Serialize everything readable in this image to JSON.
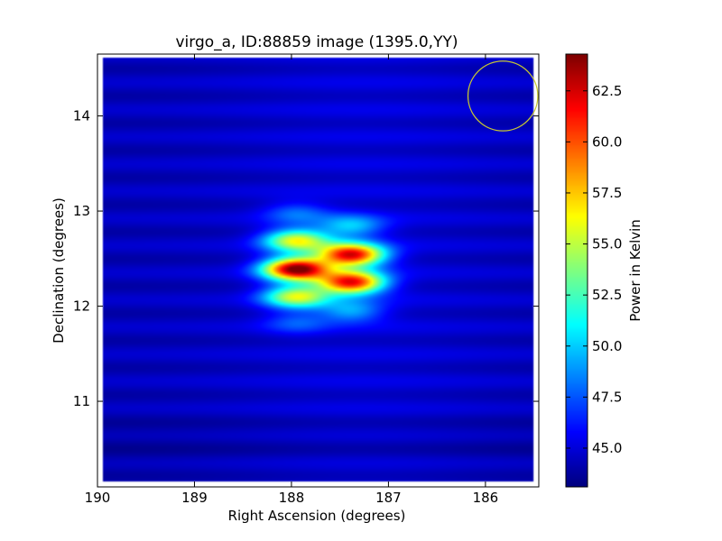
{
  "chart_data": {
    "type": "heatmap",
    "title": "virgo_a, ID:88859 image (1395.0,YY)",
    "xlabel": "Right Ascension (degrees)",
    "ylabel": "Declination (degrees)",
    "xlim": [
      190.0,
      185.45
    ],
    "ylim": [
      10.1,
      14.65
    ],
    "x_ticks": [
      190,
      189,
      188,
      187,
      186
    ],
    "x_tick_labels": [
      "190",
      "189",
      "188",
      "187",
      "186"
    ],
    "y_ticks": [
      11,
      12,
      13,
      14
    ],
    "y_tick_labels": [
      "11",
      "12",
      "13",
      "14"
    ],
    "colorbar": {
      "label": "Power in Kelvin",
      "range": [
        43.1,
        64.3
      ],
      "ticks": [
        45.0,
        47.5,
        50.0,
        52.5,
        55.0,
        57.5,
        60.0,
        62.5
      ],
      "tick_labels": [
        "45.0",
        "47.5",
        "50.0",
        "52.5",
        "55.0",
        "57.5",
        "60.0",
        "62.5"
      ],
      "colormap": "jet"
    },
    "background_level": 44.3,
    "data_extent": {
      "ra": [
        189.95,
        185.5
      ],
      "dec": [
        10.15,
        14.62
      ]
    },
    "sources": [
      {
        "ra": 187.95,
        "dec": 12.39,
        "peak": 64.0
      },
      {
        "ra": 187.95,
        "dec": 12.69,
        "peak": 55.5
      },
      {
        "ra": 187.95,
        "dec": 12.1,
        "peak": 55.0
      },
      {
        "ra": 187.95,
        "dec": 12.98,
        "peak": 47.5
      },
      {
        "ra": 187.95,
        "dec": 11.83,
        "peak": 47.0
      },
      {
        "ra": 187.38,
        "dec": 12.54,
        "peak": 62.0
      },
      {
        "ra": 187.38,
        "dec": 12.25,
        "peak": 61.5
      },
      {
        "ra": 187.38,
        "dec": 12.84,
        "peak": 49.5
      },
      {
        "ra": 187.38,
        "dec": 11.95,
        "peak": 49.0
      }
    ],
    "beam_circle": {
      "ra": 185.82,
      "dec": 14.21,
      "radius_deg": 0.36,
      "color": "#c8c832"
    },
    "grid": false
  }
}
